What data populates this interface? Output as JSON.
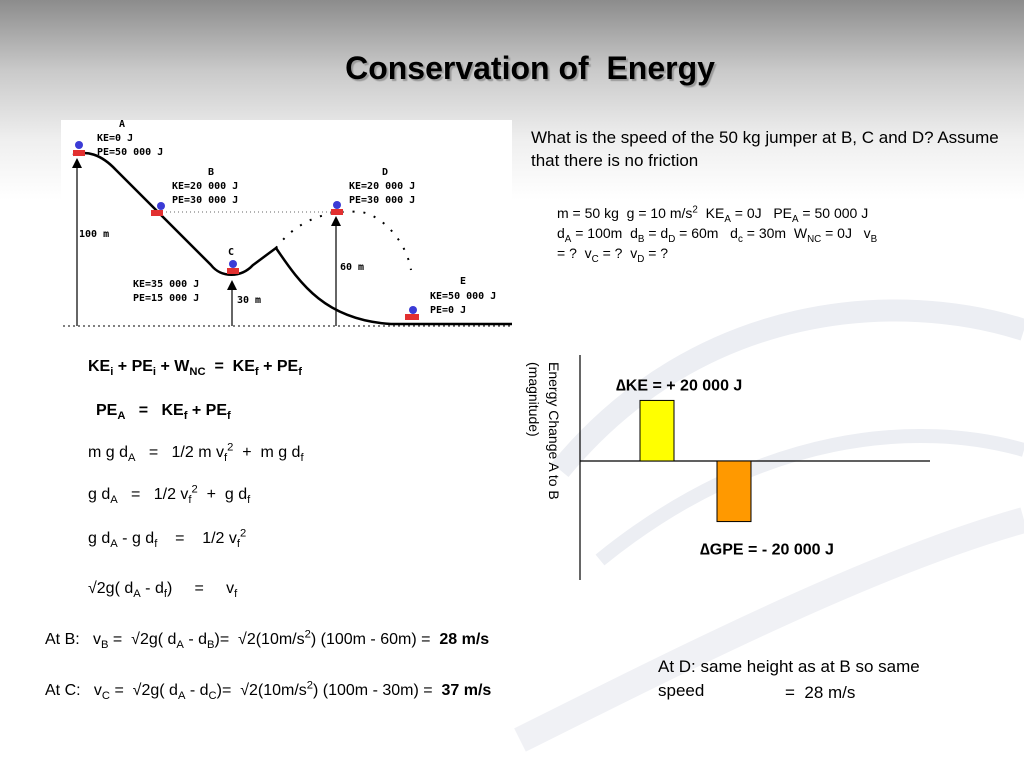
{
  "title": "Conservation of  Energy",
  "diagram": {
    "points": [
      {
        "letter": "A",
        "ke": "KE=0 J",
        "pe": "PE=50 000 J"
      },
      {
        "letter": "B",
        "ke": "KE=20 000 J",
        "pe": "PE=30 000 J"
      },
      {
        "letter": "C",
        "ke": "KE=35 000 J",
        "pe": "PE=15 000 J"
      },
      {
        "letter": "D",
        "ke": "KE=20 000 J",
        "pe": "PE=30 000 J"
      },
      {
        "letter": "E",
        "ke": "KE=50 000 J",
        "pe": "PE=0 J"
      }
    ],
    "heights": {
      "a": "100 m",
      "d": "60 m",
      "c": "30 m"
    }
  },
  "question": "What is the  speed of the 50 kg jumper at B, C and D? Assume that there is no friction",
  "givens": {
    "m": "m = 50 kg",
    "g_pre": "g = 10 m/s",
    "g_exp": "2",
    "ke_pre": "KE",
    "ke_sub": "A",
    "ke_post": " = 0J",
    "pe_pre": "PE",
    "pe_sub": "A",
    "pe_post": " = 50 000 J",
    "d": "d",
    "da_sub": "A",
    "da_post": " = 100m",
    "db_sub": "B",
    "db_mid": " = d",
    "dd_sub": "D",
    "dd_post": " = 60m",
    "dc_sub": "c",
    "dc_post": " = 30m",
    "w": "W",
    "wnc_sub": "NC",
    "wnc_post": " = 0J",
    "v": "v",
    "vb_sub": "B",
    "vb_post": " = ?",
    "vc_sub": "C",
    "vc_post": " = ?",
    "vd_sub": "D",
    "vd_post": " = ?"
  },
  "equations": {
    "e1": {
      "a": "KE",
      "a_sub": "i",
      "b": " + PE",
      "b_sub": "i",
      "c": " + W",
      "c_sub": "NC",
      "d": "  =  KE",
      "d_sub": "f",
      "e": " + PE",
      "e_sub": "f"
    },
    "e2": {
      "a": "PE",
      "a_sub": "A",
      "b": "   =   KE",
      "b_sub": "f",
      "c": " + PE",
      "c_sub": "f"
    },
    "e3": {
      "a": "m g d",
      "a_sub": "A",
      "b": "   =   1/2 m v",
      "b_sub": "f",
      "b_sup": "2",
      "c": "  +  m g d",
      "c_sub": "f"
    },
    "e4": {
      "a": "g d",
      "a_sub": "A",
      "b": "   =   1/2 v",
      "b_sub": "f",
      "b_sup": "2",
      "c": "  +  g d",
      "c_sub": "f"
    },
    "e5": {
      "a": "g d",
      "a_sub": "A",
      "b": " - g d",
      "b_sub": "f",
      "c": "    =    1/2 v",
      "c_sub": "f",
      "c_sup": "2"
    },
    "e6": {
      "a": "√2g( d",
      "a_sub": "A",
      "b": " - d",
      "b_sub": "f",
      "c": ")     =     v",
      "c_sub": "f"
    }
  },
  "results": {
    "b": {
      "label": "At B:   v",
      "v_sub": "B",
      "eq": " =  √2g( d",
      "d1_sub": "A",
      "mid": " - d",
      "d2_sub": "B",
      "calc": ")=  √2(10m/s",
      "exp": "2",
      "rest": ") (100m - 60m) =  ",
      "answer": "28 m/s"
    },
    "c": {
      "label": "At C:   v",
      "v_sub": "C",
      "eq": " =  √2g( d",
      "d1_sub": "A",
      "mid": " - d",
      "d2_sub": "C",
      "calc": ")=  √2(10m/s",
      "exp": "2",
      "rest": ") (100m - 30m) =  ",
      "answer": "37 m/s"
    }
  },
  "note": {
    "text": "At D:   same height as at B so same speed",
    "answer": "=  28 m/s"
  },
  "chart_data": {
    "type": "bar",
    "ylabel_line1": "Energy Change  A to B",
    "ylabel_line2": "(magnitude)",
    "series": [
      {
        "name": "∆KE = + 20 000 J",
        "value": 20000,
        "color": "#ffff00"
      },
      {
        "name": "∆GPE = - 20 000 J",
        "value": -20000,
        "color": "#ff9900"
      }
    ],
    "ylim": [
      -35000,
      35000
    ]
  },
  "colors": {
    "background": "#ffffff",
    "ke_bar": "#ffff00",
    "gpe_bar": "#ff9900"
  }
}
